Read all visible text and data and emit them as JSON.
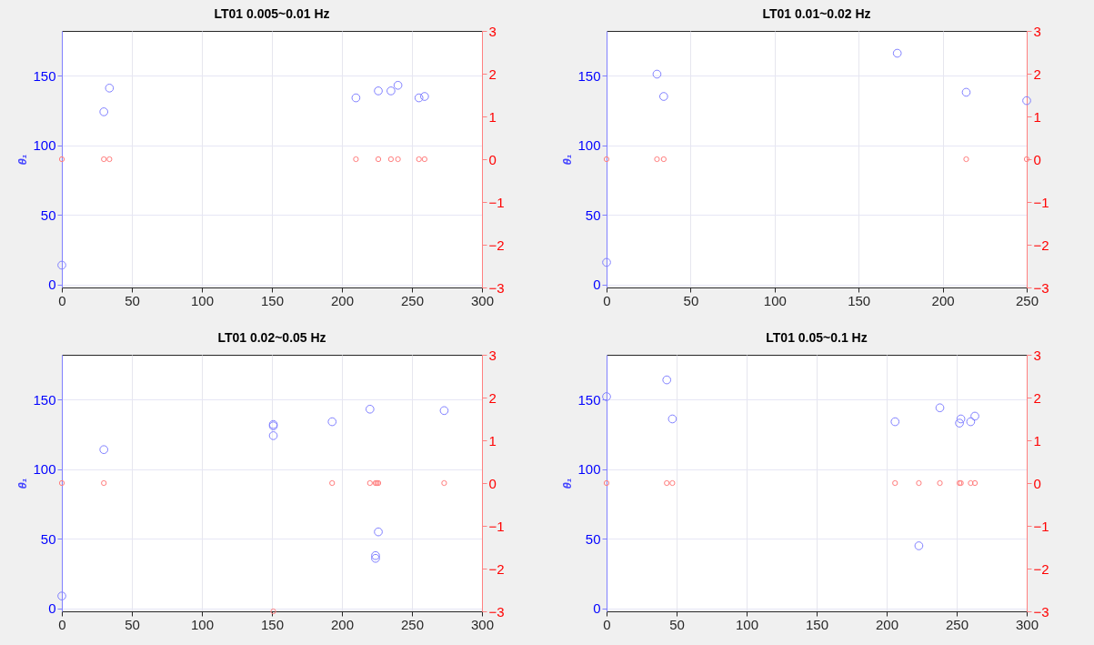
{
  "chart_data": [
    {
      "type": "scatter",
      "title": "LT01 0.005~0.01 Hz",
      "ylabel": "θ₁",
      "xlim": [
        0,
        300
      ],
      "xticks": [
        0,
        50,
        100,
        150,
        200,
        250,
        300
      ],
      "ylim": [
        -2,
        182
      ],
      "yticks": [
        0,
        50,
        100,
        150
      ],
      "y2lim": [
        -3,
        3
      ],
      "y2ticks": [
        -3,
        -2,
        -1,
        0,
        1,
        2,
        3
      ],
      "grid": true,
      "marker": "circle",
      "series": [
        {
          "color": "#8080ff",
          "x": [
            0,
            30,
            34,
            210,
            226,
            235,
            240,
            255,
            259
          ],
          "values": [
            14,
            124,
            141,
            134,
            139,
            139,
            143,
            134,
            135
          ]
        },
        {
          "color": "#ff8080",
          "axis": "y2",
          "x": [
            0,
            30,
            34,
            210,
            226,
            235,
            240,
            255,
            259
          ],
          "values": [
            0,
            0,
            0,
            0,
            0,
            0,
            0,
            0,
            0
          ]
        }
      ]
    },
    {
      "type": "scatter",
      "title": "LT01 0.01~0.02 Hz",
      "ylabel": "θ₁",
      "xlim": [
        0,
        250
      ],
      "xticks": [
        0,
        50,
        100,
        150,
        200,
        250
      ],
      "ylim": [
        -2,
        182
      ],
      "yticks": [
        0,
        50,
        100,
        150
      ],
      "y2lim": [
        -3,
        3
      ],
      "y2ticks": [
        -3,
        -2,
        -1,
        0,
        1,
        2,
        3
      ],
      "grid": true,
      "marker": "circle",
      "series": [
        {
          "color": "#8080ff",
          "x": [
            0,
            30,
            34,
            173,
            214,
            250
          ],
          "values": [
            16,
            151,
            135,
            166,
            138,
            132
          ]
        },
        {
          "color": "#ff8080",
          "axis": "y2",
          "x": [
            0,
            30,
            34,
            214,
            250
          ],
          "values": [
            0,
            0,
            0,
            0,
            0
          ]
        }
      ]
    },
    {
      "type": "scatter",
      "title": "LT01 0.02~0.05 Hz",
      "ylabel": "θ₁",
      "xlim": [
        0,
        300
      ],
      "xticks": [
        0,
        50,
        100,
        150,
        200,
        250,
        300
      ],
      "ylim": [
        -2,
        182
      ],
      "yticks": [
        0,
        50,
        100,
        150
      ],
      "y2lim": [
        -3,
        3
      ],
      "y2ticks": [
        -3,
        -2,
        -1,
        0,
        1,
        2,
        3
      ],
      "grid": true,
      "marker": "circle",
      "series": [
        {
          "color": "#8080ff",
          "x": [
            0,
            30,
            151,
            151,
            151,
            193,
            220,
            224,
            224,
            226,
            273
          ],
          "values": [
            9,
            114,
            132,
            131,
            124,
            134,
            143,
            38,
            36,
            55,
            142
          ]
        },
        {
          "color": "#ff8080",
          "axis": "y2",
          "x": [
            0,
            30,
            151,
            193,
            220,
            224,
            225,
            226,
            273
          ],
          "values": [
            0,
            0,
            -3,
            0,
            0,
            0,
            0,
            0,
            0
          ]
        }
      ]
    },
    {
      "type": "scatter",
      "title": "LT01 0.05~0.1 Hz",
      "ylabel": "θ₁",
      "xlim": [
        0,
        300
      ],
      "xticks": [
        0,
        50,
        100,
        150,
        200,
        250,
        300
      ],
      "ylim": [
        -2,
        182
      ],
      "yticks": [
        0,
        50,
        100,
        150
      ],
      "y2lim": [
        -3,
        3
      ],
      "y2ticks": [
        -3,
        -2,
        -1,
        0,
        1,
        2,
        3
      ],
      "grid": true,
      "marker": "circle",
      "series": [
        {
          "color": "#8080ff",
          "x": [
            0,
            43,
            47,
            206,
            223,
            238,
            252,
            253,
            260,
            263
          ],
          "values": [
            152,
            164,
            136,
            134,
            45,
            144,
            133,
            136,
            134,
            138
          ]
        },
        {
          "color": "#ff8080",
          "axis": "y2",
          "x": [
            0,
            43,
            47,
            206,
            223,
            238,
            252,
            253,
            260,
            263
          ],
          "values": [
            0,
            0,
            0,
            0,
            0,
            0,
            0,
            0,
            0,
            0
          ]
        }
      ]
    }
  ]
}
